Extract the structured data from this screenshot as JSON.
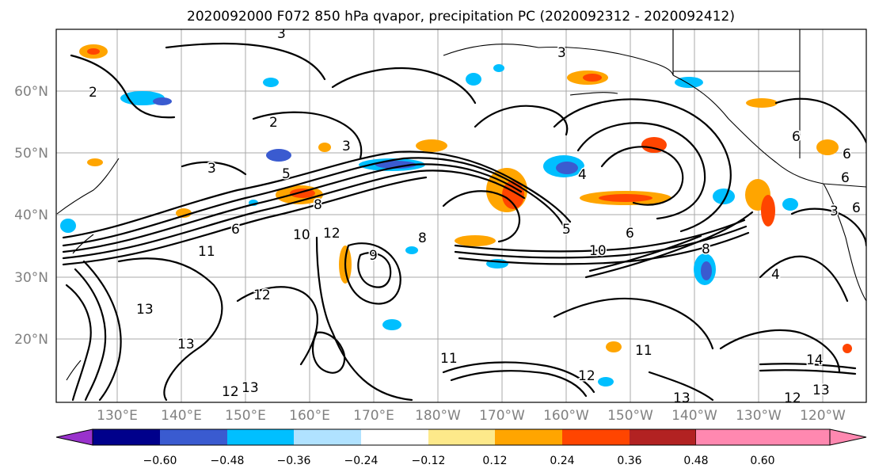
{
  "title": "2020092000 F072 850 hPa qvapor, precipitation PC (2020092312 - 2020092412)",
  "lat_labels": [
    "60°N",
    "50°N",
    "40°N",
    "30°N",
    "20°N"
  ],
  "lon_labels": [
    "130°E",
    "140°E",
    "150°E",
    "160°E",
    "170°E",
    "180°W",
    "170°W",
    "160°W",
    "150°W",
    "140°W",
    "130°W",
    "120°W"
  ],
  "colorbar": {
    "ticks": [
      "−0.60",
      "−0.48",
      "−0.36",
      "−0.24",
      "−0.12",
      "0.12",
      "0.24",
      "0.36",
      "0.48",
      "0.60"
    ],
    "colors": [
      "#9932cc",
      "#00008b",
      "#3a5bd0",
      "#00bfff",
      "#b0e2ff",
      "#ffffff",
      "#fde98a",
      "#ffa500",
      "#ff4500",
      "#b22222",
      "#ff88b0"
    ]
  },
  "contour_labels": [
    "3",
    "3",
    "2",
    "2",
    "3",
    "5",
    "8",
    "6",
    "10",
    "12",
    "11",
    "12",
    "13",
    "13",
    "12",
    "13",
    "11",
    "6",
    "5",
    "8",
    "9",
    "10",
    "8",
    "4",
    "3",
    "14",
    "13",
    "12",
    "11",
    "12",
    "13",
    "6",
    "6",
    "4",
    "3",
    "6",
    "6"
  ]
}
